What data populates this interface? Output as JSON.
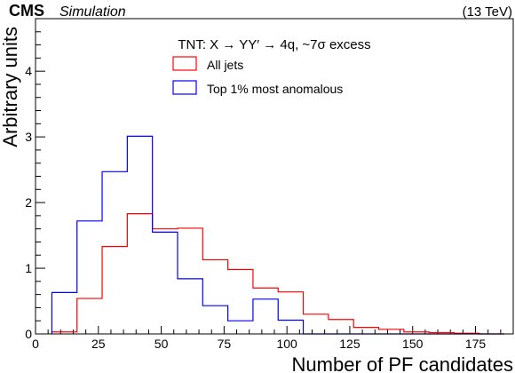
{
  "header": {
    "experiment": "CMS",
    "tag": "Simulation",
    "energy": "(13 TeV)"
  },
  "chart_data": {
    "type": "histogram",
    "title": "TNT: X → YY′ → 4q, ~7σ excess",
    "xlabel": "Number of PF candidates",
    "ylabel": "Arbitrary units",
    "xlim": [
      0,
      190
    ],
    "ylim": [
      0,
      4.8
    ],
    "xticks": [
      0,
      25,
      50,
      75,
      100,
      125,
      150,
      175
    ],
    "yticks": [
      0,
      1,
      2,
      3,
      4
    ],
    "bin_edges": [
      6.5,
      16.5,
      26.5,
      36.5,
      46.5,
      56.5,
      66.5,
      76.5,
      86.5,
      96.5,
      106.5,
      116.5,
      126.5,
      136.5,
      146.5,
      156.5,
      166.5,
      176.5,
      186.5
    ],
    "legend_position": "top-center",
    "series": [
      {
        "name": "All jets",
        "color": "#ff0000",
        "values": [
          0.03,
          0.54,
          1.33,
          1.83,
          1.6,
          1.61,
          1.13,
          0.98,
          0.7,
          0.64,
          0.3,
          0.22,
          0.1,
          0.07,
          0.03,
          0.02,
          0.01,
          0.0
        ]
      },
      {
        "name": "Top 1% most anomalous",
        "color": "#0000ff",
        "values": [
          0.63,
          1.72,
          2.47,
          3.01,
          1.55,
          0.84,
          0.43,
          0.2,
          0.53,
          0.21,
          0.0,
          0.0,
          0.0,
          0.0,
          0.0,
          0.0,
          0.0,
          0.0
        ]
      }
    ]
  }
}
